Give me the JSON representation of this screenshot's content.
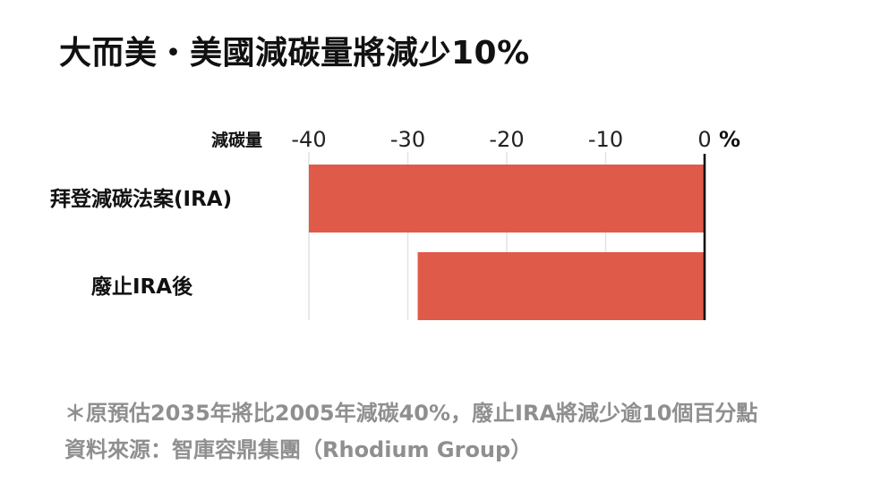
{
  "title": "大而美・美國減碳量將減少10%",
  "chart_data": {
    "type": "bar",
    "orientation": "horizontal",
    "xlabel": "減碳量",
    "unit": "%",
    "xlim": [
      -40,
      0
    ],
    "ticks": [
      -40,
      -30,
      -20,
      -10,
      0
    ],
    "tick_labels": [
      "-40",
      "-30",
      "-20",
      "-10",
      "0"
    ],
    "grid": true,
    "bar_color": "#e05a4a",
    "categories": [
      "拜登減碳法案(IRA)",
      "廢止IRA後"
    ],
    "values": [
      -40,
      -29
    ]
  },
  "notes": {
    "line1": "＊原預估2035年將比2005年減碳40%，廢止IRA將減少逾10個百分點",
    "line2": "資料來源：智庫容鼎集團（Rhodium Group）"
  }
}
